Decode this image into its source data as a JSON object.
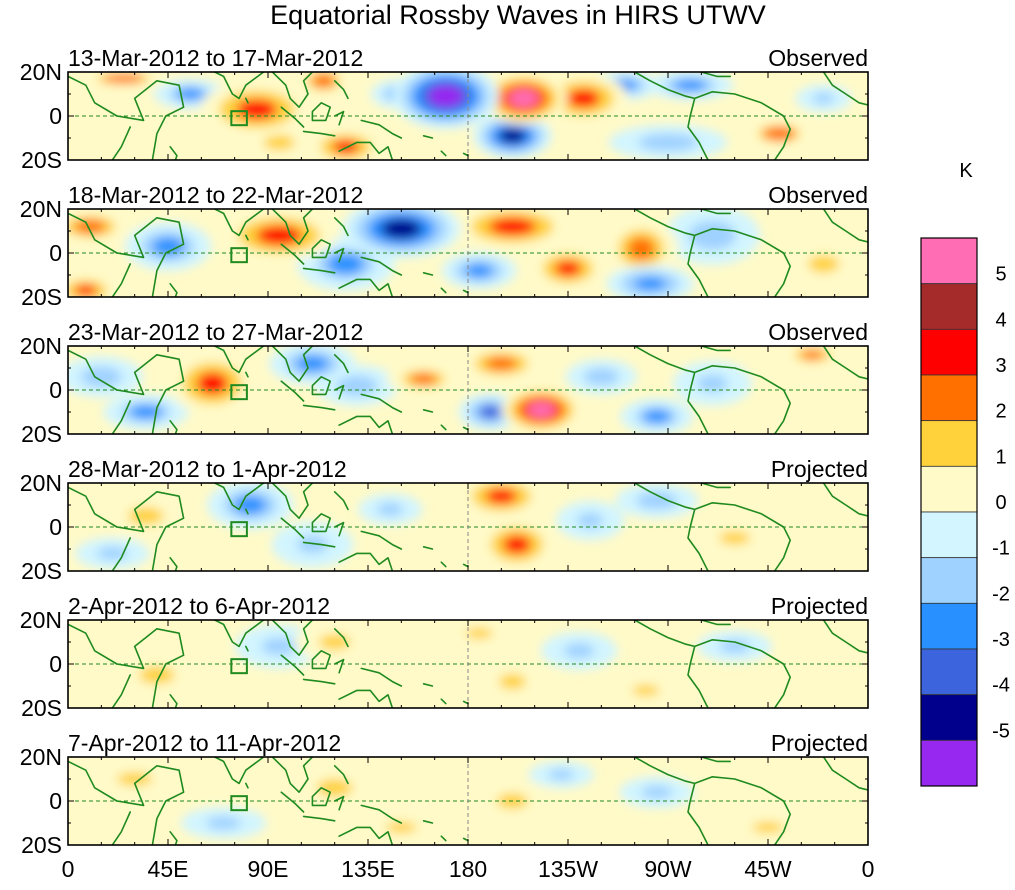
{
  "chart_data": {
    "type": "heatmap",
    "title": "Equatorial Rossby Waves in HIRS UTWV",
    "colorbar": {
      "unit": "K",
      "levels": [
        "5",
        "4",
        "3",
        "2",
        "1",
        "0",
        "-1",
        "-2",
        "-3",
        "-4",
        "-5"
      ],
      "colors": [
        "#ff6eb4",
        "#a52a2a",
        "#ff0000",
        "#ff7000",
        "#ffd23c",
        "#fffac8",
        "#d2f5ff",
        "#a0d2ff",
        "#2891ff",
        "#3c64dc",
        "#00008c",
        "#9628f0"
      ]
    },
    "y_ticks": [
      "20N",
      "0",
      "20S"
    ],
    "x_ticks": [
      "0",
      "45E",
      "90E",
      "135E",
      "180",
      "135W",
      "90W",
      "45W",
      "0"
    ],
    "panels": [
      {
        "period": "13-Mar-2012 to 17-Mar-2012",
        "status": "Observed",
        "blobs": [
          {
            "lon": 25,
            "lat": 17,
            "rl": 18,
            "rt": 4,
            "v": 2.0
          },
          {
            "lon": 55,
            "lat": 10,
            "rl": 12,
            "rt": 5,
            "v": -2.4
          },
          {
            "lon": 85,
            "lat": 3,
            "rl": 18,
            "rt": 9,
            "v": 3.0
          },
          {
            "lon": 95,
            "lat": -12,
            "rl": 14,
            "rt": 7,
            "v": 1.5
          },
          {
            "lon": 115,
            "lat": 16,
            "rl": 10,
            "rt": 6,
            "v": 2.2
          },
          {
            "lon": 125,
            "lat": -14,
            "rl": 12,
            "rt": 6,
            "v": 3.0
          },
          {
            "lon": 150,
            "lat": 10,
            "rl": 10,
            "rt": 5,
            "v": -2.5
          },
          {
            "lon": 170,
            "lat": 9,
            "rl": 16,
            "rt": 10,
            "v": -5.5
          },
          {
            "lon": 205,
            "lat": 8,
            "rl": 13,
            "rt": 8,
            "v": 5.0
          },
          {
            "lon": 200,
            "lat": -9,
            "rl": 12,
            "rt": 7,
            "v": -4.6
          },
          {
            "lon": 232,
            "lat": 8,
            "rl": 14,
            "rt": 8,
            "v": 3.2
          },
          {
            "lon": 250,
            "lat": 14,
            "rl": 12,
            "rt": 5,
            "v": -2.5
          },
          {
            "lon": 280,
            "lat": 14,
            "rl": 14,
            "rt": 5,
            "v": -2.5
          },
          {
            "lon": 270,
            "lat": -12,
            "rl": 20,
            "rt": 6,
            "v": -2.0
          },
          {
            "lon": 320,
            "lat": -8,
            "rl": 14,
            "rt": 6,
            "v": 2.0
          },
          {
            "lon": 340,
            "lat": 8,
            "rl": 10,
            "rt": 5,
            "v": -1.5
          }
        ]
      },
      {
        "period": "18-Mar-2012 to 22-Mar-2012",
        "status": "Observed",
        "blobs": [
          {
            "lon": 10,
            "lat": 12,
            "rl": 14,
            "rt": 6,
            "v": 2.4
          },
          {
            "lon": 8,
            "lat": -17,
            "rl": 10,
            "rt": 5,
            "v": 3.0
          },
          {
            "lon": 45,
            "lat": 3,
            "rl": 14,
            "rt": 8,
            "v": -2.6
          },
          {
            "lon": 95,
            "lat": 8,
            "rl": 18,
            "rt": 8,
            "v": 3.4
          },
          {
            "lon": 125,
            "lat": -5,
            "rl": 16,
            "rt": 9,
            "v": -2.4
          },
          {
            "lon": 150,
            "lat": 11,
            "rl": 18,
            "rt": 9,
            "v": -4.6
          },
          {
            "lon": 200,
            "lat": 12,
            "rl": 18,
            "rt": 7,
            "v": 3.5
          },
          {
            "lon": 185,
            "lat": -8,
            "rl": 12,
            "rt": 6,
            "v": -2.8
          },
          {
            "lon": 225,
            "lat": -7,
            "rl": 12,
            "rt": 7,
            "v": 3.0
          },
          {
            "lon": 258,
            "lat": 2,
            "rl": 12,
            "rt": 10,
            "v": 2.6
          },
          {
            "lon": 262,
            "lat": -14,
            "rl": 14,
            "rt": 6,
            "v": -3.0
          },
          {
            "lon": 290,
            "lat": 8,
            "rl": 16,
            "rt": 10,
            "v": -2.0
          },
          {
            "lon": 340,
            "lat": -5,
            "rl": 14,
            "rt": 8,
            "v": 1.5
          }
        ]
      },
      {
        "period": "23-Mar-2012 to 27-Mar-2012",
        "status": "Observed",
        "blobs": [
          {
            "lon": 15,
            "lat": 6,
            "rl": 14,
            "rt": 7,
            "v": -2.0
          },
          {
            "lon": 35,
            "lat": -10,
            "rl": 14,
            "rt": 6,
            "v": -2.4
          },
          {
            "lon": 65,
            "lat": 3,
            "rl": 14,
            "rt": 10,
            "v": 3.0
          },
          {
            "lon": 110,
            "lat": 12,
            "rl": 14,
            "rt": 7,
            "v": -2.6
          },
          {
            "lon": 130,
            "lat": 2,
            "rl": 14,
            "rt": 7,
            "v": -2.0
          },
          {
            "lon": 160,
            "lat": 5,
            "rl": 12,
            "rt": 5,
            "v": 2.4
          },
          {
            "lon": 195,
            "lat": 12,
            "rl": 14,
            "rt": 6,
            "v": 2.6
          },
          {
            "lon": 213,
            "lat": -9,
            "rl": 12,
            "rt": 7,
            "v": 5.2
          },
          {
            "lon": 190,
            "lat": -10,
            "rl": 10,
            "rt": 6,
            "v": -3.2
          },
          {
            "lon": 240,
            "lat": 6,
            "rl": 12,
            "rt": 6,
            "v": -2.0
          },
          {
            "lon": 265,
            "lat": -12,
            "rl": 12,
            "rt": 6,
            "v": -2.4
          },
          {
            "lon": 290,
            "lat": 3,
            "rl": 14,
            "rt": 8,
            "v": -1.5
          },
          {
            "lon": 335,
            "lat": 16,
            "rl": 10,
            "rt": 4,
            "v": 2.4
          }
        ]
      },
      {
        "period": "28-Mar-2012 to 1-Apr-2012",
        "status": "Projected",
        "blobs": [
          {
            "lon": 35,
            "lat": 5,
            "rl": 16,
            "rt": 8,
            "v": 1.3
          },
          {
            "lon": 20,
            "lat": -12,
            "rl": 14,
            "rt": 6,
            "v": -1.2
          },
          {
            "lon": 82,
            "lat": 10,
            "rl": 14,
            "rt": 8,
            "v": -2.6
          },
          {
            "lon": 110,
            "lat": -8,
            "rl": 14,
            "rt": 8,
            "v": -1.8
          },
          {
            "lon": 145,
            "lat": 8,
            "rl": 12,
            "rt": 6,
            "v": -1.2
          },
          {
            "lon": 195,
            "lat": 14,
            "rl": 14,
            "rt": 7,
            "v": 3.0
          },
          {
            "lon": 202,
            "lat": -8,
            "rl": 12,
            "rt": 8,
            "v": 3.2
          },
          {
            "lon": 235,
            "lat": 3,
            "rl": 12,
            "rt": 7,
            "v": -1.6
          },
          {
            "lon": 265,
            "lat": 12,
            "rl": 14,
            "rt": 6,
            "v": -2.0
          },
          {
            "lon": 300,
            "lat": -5,
            "rl": 14,
            "rt": 6,
            "v": 1.4
          }
        ]
      },
      {
        "period": "2-Apr-2012 to 6-Apr-2012",
        "status": "Projected",
        "blobs": [
          {
            "lon": 40,
            "lat": -5,
            "rl": 16,
            "rt": 8,
            "v": 1.3
          },
          {
            "lon": 95,
            "lat": 8,
            "rl": 16,
            "rt": 8,
            "v": -1.4
          },
          {
            "lon": 120,
            "lat": 10,
            "rl": 14,
            "rt": 7,
            "v": 1.6
          },
          {
            "lon": 185,
            "lat": 14,
            "rl": 12,
            "rt": 5,
            "v": 1.7
          },
          {
            "lon": 200,
            "lat": -8,
            "rl": 12,
            "rt": 7,
            "v": 1.5
          },
          {
            "lon": 230,
            "lat": 6,
            "rl": 14,
            "rt": 7,
            "v": -1.3
          },
          {
            "lon": 260,
            "lat": -12,
            "rl": 12,
            "rt": 5,
            "v": 1.2
          },
          {
            "lon": 300,
            "lat": 8,
            "rl": 14,
            "rt": 6,
            "v": -1.2
          }
        ]
      },
      {
        "period": "7-Apr-2012 to 11-Apr-2012",
        "status": "Projected",
        "blobs": [
          {
            "lon": 30,
            "lat": 10,
            "rl": 16,
            "rt": 6,
            "v": 1.2
          },
          {
            "lon": 70,
            "lat": -10,
            "rl": 16,
            "rt": 6,
            "v": -1.2
          },
          {
            "lon": 120,
            "lat": 6,
            "rl": 16,
            "rt": 8,
            "v": 1.3
          },
          {
            "lon": 150,
            "lat": -12,
            "rl": 14,
            "rt": 5,
            "v": 1.2
          },
          {
            "lon": 200,
            "lat": 0,
            "rl": 14,
            "rt": 7,
            "v": 1.4
          },
          {
            "lon": 222,
            "lat": 12,
            "rl": 12,
            "rt": 5,
            "v": -1.3
          },
          {
            "lon": 265,
            "lat": 4,
            "rl": 14,
            "rt": 6,
            "v": -1.2
          },
          {
            "lon": 315,
            "lat": -12,
            "rl": 14,
            "rt": 5,
            "v": 1.2
          }
        ]
      }
    ]
  }
}
